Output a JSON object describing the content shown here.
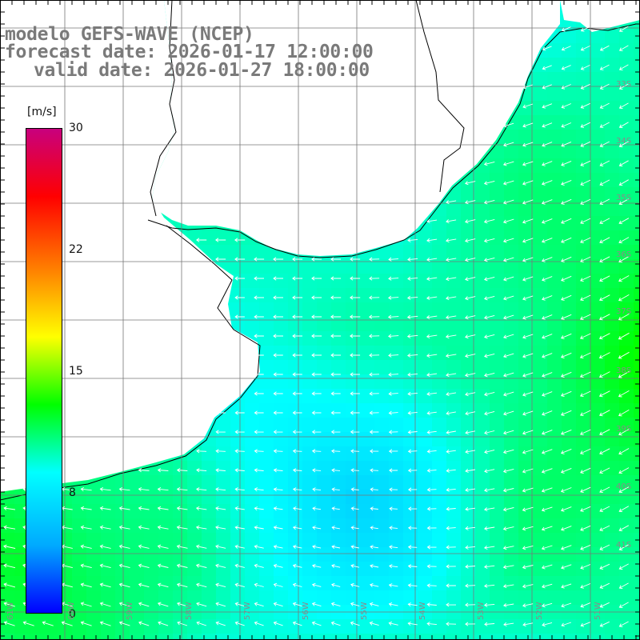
{
  "header": {
    "line1": "modelo GEFS-WAVE (NCEP)",
    "line2": "forecast date: 2026-01-17 12:00:00",
    "line3": "valid date: 2026-01-27 18:00:00"
  },
  "colorbar": {
    "unit": "[m/s]",
    "ticks": [
      "30",
      "22",
      "15",
      "8",
      "0"
    ],
    "min": 0,
    "max": 30,
    "colors": [
      "#0000ff",
      "#00aaff",
      "#00ffff",
      "#00ff00",
      "#ffff00",
      "#ff7f00",
      "#ff0000",
      "#c8007e"
    ]
  },
  "latitude_labels": [
    "33S",
    "34S",
    "35S",
    "36S",
    "37S",
    "38S",
    "39S",
    "40S",
    "41S"
  ],
  "longitude_labels": [
    "61W",
    "60W",
    "59W",
    "58W",
    "57W",
    "56W",
    "55W",
    "54W",
    "53W",
    "52W",
    "51W"
  ],
  "field": {
    "speed_range_mps": [
      6,
      13
    ],
    "dominant_direction": "from east / south-east"
  }
}
